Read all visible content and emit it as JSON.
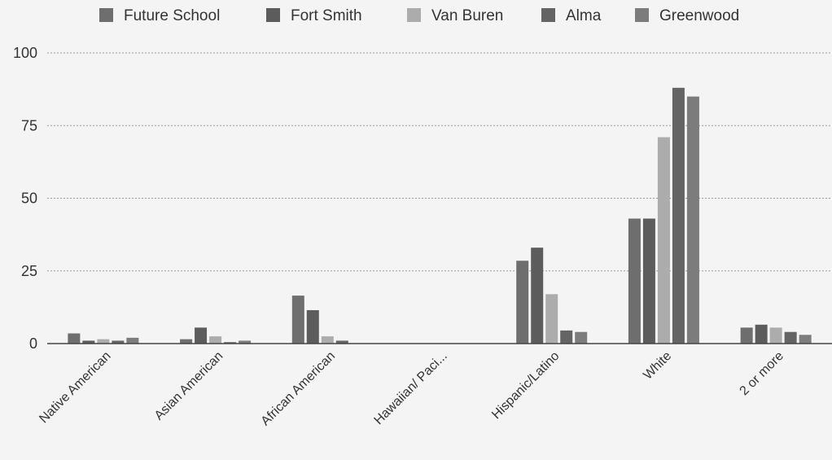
{
  "chart_data": {
    "type": "bar",
    "categories": [
      "Native American",
      "Asian American",
      "African American",
      "Hawaiian/ Paci...",
      "Hispanic/Latino",
      "White",
      "2 or more"
    ],
    "series": [
      {
        "name": "Future School",
        "color": "#6e6e6e",
        "values": [
          3.5,
          1.5,
          16.5,
          0,
          28.5,
          43,
          5.5
        ]
      },
      {
        "name": "Fort Smith",
        "color": "#5c5c5c",
        "values": [
          1,
          5.5,
          11.5,
          0,
          33,
          43,
          6.5
        ]
      },
      {
        "name": "Van Buren",
        "color": "#acacac",
        "values": [
          1.5,
          2.5,
          2.5,
          0,
          17,
          71,
          5.5
        ]
      },
      {
        "name": "Alma",
        "color": "#646464",
        "values": [
          1,
          0.5,
          1,
          0,
          4.5,
          88,
          4
        ]
      },
      {
        "name": "Greenwood",
        "color": "#7c7c7c",
        "values": [
          2,
          1,
          0,
          0,
          4,
          85,
          3
        ]
      }
    ],
    "yticks": [
      "0",
      "25",
      "50",
      "75",
      "100"
    ],
    "ylim": [
      0,
      100
    ],
    "grid": true,
    "legend_position": "top"
  }
}
